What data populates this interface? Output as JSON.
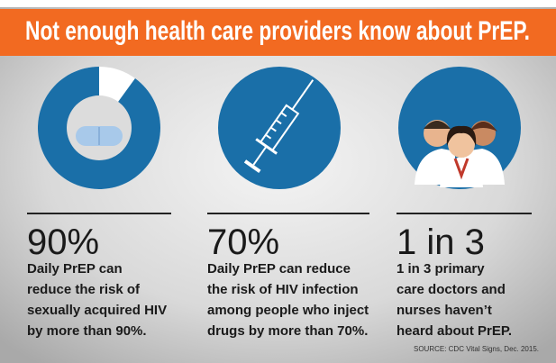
{
  "header": {
    "title": "Not enough health care providers know about PrEP."
  },
  "panels": [
    {
      "stat": "90%",
      "lines": [
        "Daily PrEP can",
        "reduce the risk of",
        "sexually acquired HIV",
        "by more than 90%."
      ]
    },
    {
      "stat": "70%",
      "lines": [
        "Daily PrEP can reduce",
        "the risk of HIV infection",
        "among people who inject",
        "drugs by more than 70%."
      ]
    },
    {
      "stat": "1 in 3",
      "lines": [
        "1 in 3 primary",
        "care doctors and",
        "nurses haven’t",
        "heard about PrEP."
      ]
    }
  ],
  "source": "SOURCE: CDC Vital Signs, Dec. 2015."
}
